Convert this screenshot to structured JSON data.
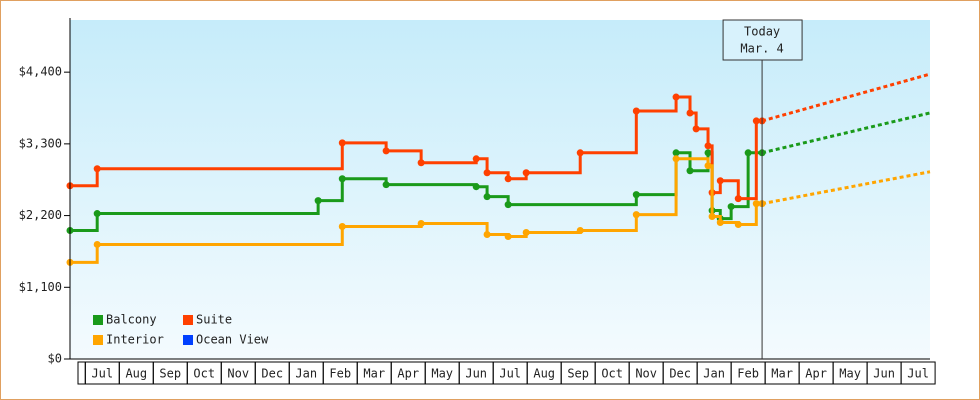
{
  "chart_data": {
    "type": "step-line",
    "xlim": [
      -0.45,
      24.85
    ],
    "ylim": [
      0,
      5200
    ],
    "yticks": [
      {
        "value": 0,
        "label": "$0"
      },
      {
        "value": 1100,
        "label": "$1,100"
      },
      {
        "value": 2200,
        "label": "$2,200"
      },
      {
        "value": 3300,
        "label": "$3,300"
      },
      {
        "value": 4400,
        "label": "$4,400"
      }
    ],
    "xticks": [
      {
        "value": 0.5,
        "label": "Jul"
      },
      {
        "value": 1.5,
        "label": "Aug"
      },
      {
        "value": 2.5,
        "label": "Sep"
      },
      {
        "value": 3.5,
        "label": "Oct"
      },
      {
        "value": 4.5,
        "label": "Nov"
      },
      {
        "value": 5.5,
        "label": "Dec"
      },
      {
        "value": 6.5,
        "label": "Jan"
      },
      {
        "value": 7.5,
        "label": "Feb"
      },
      {
        "value": 8.5,
        "label": "Mar"
      },
      {
        "value": 9.5,
        "label": "Apr"
      },
      {
        "value": 10.5,
        "label": "May"
      },
      {
        "value": 11.5,
        "label": "Jun"
      },
      {
        "value": 12.5,
        "label": "Jul"
      },
      {
        "value": 13.5,
        "label": "Aug"
      },
      {
        "value": 14.5,
        "label": "Sep"
      },
      {
        "value": 15.5,
        "label": "Oct"
      },
      {
        "value": 16.5,
        "label": "Nov"
      },
      {
        "value": 17.5,
        "label": "Dec"
      },
      {
        "value": 18.5,
        "label": "Jan"
      },
      {
        "value": 19.5,
        "label": "Feb"
      },
      {
        "value": 20.5,
        "label": "Mar"
      },
      {
        "value": 21.5,
        "label": "Apr"
      },
      {
        "value": 22.5,
        "label": "May"
      },
      {
        "value": 23.5,
        "label": "Jun"
      },
      {
        "value": 24.5,
        "label": "Jul"
      }
    ],
    "today": {
      "x": 19.91,
      "label": [
        "Today",
        "Mar. 4"
      ]
    },
    "series": [
      {
        "name": "Balcony",
        "color": "#1a9a1a",
        "x": [
          -0.45,
          0.35,
          6.85,
          7.56,
          8.85,
          11.5,
          11.82,
          12.44,
          16.21,
          17.38,
          17.79,
          18.32,
          18.44,
          18.68,
          19.0,
          19.5,
          19.91
        ],
        "values": [
          1971,
          2231,
          2429,
          2765,
          2674,
          2643,
          2490,
          2368,
          2521,
          3163,
          2888,
          3163,
          2277,
          2154,
          2338,
          3163,
          3163
        ],
        "projection": 3774
      },
      {
        "name": "Suite",
        "color": "#ff4000",
        "x": [
          -0.45,
          0.35,
          7.56,
          8.85,
          9.88,
          11.5,
          11.82,
          12.44,
          12.97,
          14.56,
          16.21,
          17.38,
          17.79,
          17.97,
          18.32,
          18.44,
          18.68,
          19.21,
          19.74,
          19.91
        ],
        "values": [
          2658,
          2918,
          3315,
          3193,
          3010,
          3071,
          2857,
          2765,
          2857,
          3163,
          3804,
          4018,
          3774,
          3530,
          3270,
          2552,
          2735,
          2460,
          3652,
          3652
        ],
        "projection": 4370
      },
      {
        "name": "Interior",
        "color": "#ffa500",
        "x": [
          -0.45,
          0.35,
          7.56,
          9.88,
          11.82,
          12.44,
          12.97,
          14.56,
          16.21,
          17.38,
          18.32,
          18.44,
          18.68,
          19.21,
          19.74,
          19.91
        ],
        "values": [
          1482,
          1757,
          2032,
          2078,
          1910,
          1879,
          1940,
          1971,
          2215,
          3071,
          2964,
          2185,
          2093,
          2063,
          2383,
          2383
        ],
        "projection": 2872
      },
      {
        "name": "Ocean View",
        "color": "#0040ff",
        "x": [],
        "values": []
      }
    ]
  }
}
